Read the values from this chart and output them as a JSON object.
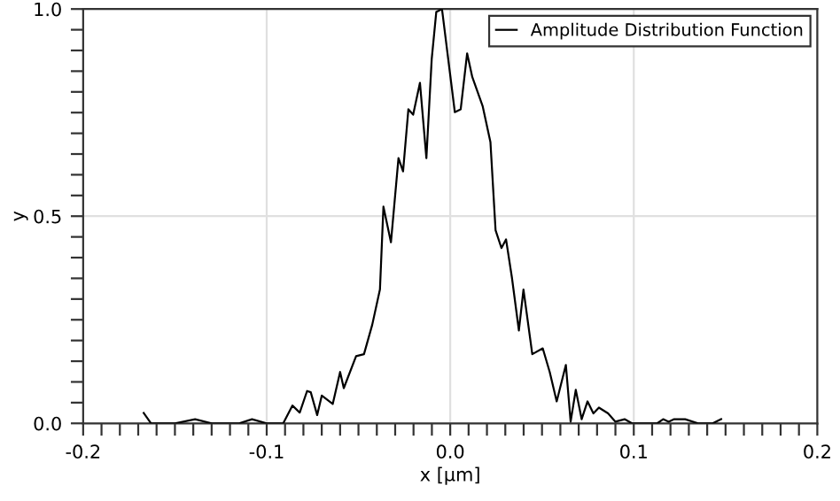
{
  "chart_data": {
    "type": "line",
    "xlabel": "x [µm]",
    "ylabel": "y",
    "x": [
      -0.167,
      -0.163,
      -0.15,
      -0.139,
      -0.13,
      -0.115,
      -0.108,
      -0.1,
      -0.091,
      -0.086,
      -0.082,
      -0.078,
      -0.076,
      -0.0725,
      -0.07,
      -0.064,
      -0.06,
      -0.058,
      -0.0513,
      -0.047,
      -0.0425,
      -0.0383,
      -0.0364,
      -0.0323,
      -0.0282,
      -0.0257,
      -0.0228,
      -0.0202,
      -0.0165,
      -0.013,
      -0.0101,
      -0.0076,
      -0.0045,
      0.0025,
      0.0057,
      0.0092,
      0.012,
      0.0177,
      0.0219,
      0.0247,
      0.0279,
      0.0304,
      0.0336,
      0.0374,
      0.0399,
      0.0447,
      0.0504,
      0.0542,
      0.058,
      0.063,
      0.0656,
      0.0684,
      0.0716,
      0.0748,
      0.078,
      0.081,
      0.086,
      0.09,
      0.095,
      0.099,
      0.1128,
      0.116,
      0.119,
      0.122,
      0.128,
      0.135,
      0.143,
      0.1476
    ],
    "series": [
      {
        "name": "Amplitude Distribution Function",
        "color": "#000000",
        "values": [
          0.025,
          0.0,
          0.0,
          0.01,
          0.0,
          0.0,
          0.01,
          0.0,
          0.0,
          0.043,
          0.026,
          0.078,
          0.075,
          0.02,
          0.067,
          0.047,
          0.124,
          0.085,
          0.162,
          0.167,
          0.238,
          0.323,
          0.523,
          0.437,
          0.64,
          0.608,
          0.758,
          0.745,
          0.822,
          0.64,
          0.879,
          0.993,
          1.0,
          0.751,
          0.758,
          0.893,
          0.836,
          0.765,
          0.679,
          0.466,
          0.423,
          0.444,
          0.352,
          0.224,
          0.323,
          0.167,
          0.181,
          0.124,
          0.053,
          0.141,
          0.004,
          0.081,
          0.01,
          0.053,
          0.024,
          0.038,
          0.024,
          0.004,
          0.01,
          0.0,
          0.0,
          0.01,
          0.004,
          0.01,
          0.01,
          0.0,
          0.0,
          0.01
        ]
      }
    ],
    "xlim": [
      -0.2,
      0.2
    ],
    "ylim": [
      0.0,
      1.0
    ],
    "xticks": [
      {
        "value": -0.2,
        "label": "-0.2"
      },
      {
        "value": -0.19,
        "label": null
      },
      {
        "value": -0.18,
        "label": null
      },
      {
        "value": -0.17,
        "label": null
      },
      {
        "value": -0.16,
        "label": null
      },
      {
        "value": -0.15,
        "label": null
      },
      {
        "value": -0.14,
        "label": null
      },
      {
        "value": -0.13,
        "label": null
      },
      {
        "value": -0.12,
        "label": null
      },
      {
        "value": -0.11,
        "label": null
      },
      {
        "value": -0.1,
        "label": "-0.1"
      },
      {
        "value": -0.09,
        "label": null
      },
      {
        "value": -0.08,
        "label": null
      },
      {
        "value": -0.07,
        "label": null
      },
      {
        "value": -0.06,
        "label": null
      },
      {
        "value": -0.05,
        "label": null
      },
      {
        "value": -0.04,
        "label": null
      },
      {
        "value": -0.03,
        "label": null
      },
      {
        "value": -0.02,
        "label": null
      },
      {
        "value": -0.01,
        "label": null
      },
      {
        "value": 0.0,
        "label": "0.0"
      },
      {
        "value": 0.01,
        "label": null
      },
      {
        "value": 0.02,
        "label": null
      },
      {
        "value": 0.03,
        "label": null
      },
      {
        "value": 0.04,
        "label": null
      },
      {
        "value": 0.05,
        "label": null
      },
      {
        "value": 0.06,
        "label": null
      },
      {
        "value": 0.07,
        "label": null
      },
      {
        "value": 0.08,
        "label": null
      },
      {
        "value": 0.09,
        "label": null
      },
      {
        "value": 0.1,
        "label": "0.1"
      },
      {
        "value": 0.11,
        "label": null
      },
      {
        "value": 0.12,
        "label": null
      },
      {
        "value": 0.13,
        "label": null
      },
      {
        "value": 0.14,
        "label": null
      },
      {
        "value": 0.15,
        "label": null
      },
      {
        "value": 0.16,
        "label": null
      },
      {
        "value": 0.17,
        "label": null
      },
      {
        "value": 0.18,
        "label": null
      },
      {
        "value": 0.19,
        "label": null
      },
      {
        "value": 0.2,
        "label": "0.2"
      }
    ],
    "yticks": [
      {
        "value": 0.0,
        "label": "0.0"
      },
      {
        "value": 0.05,
        "label": null
      },
      {
        "value": 0.1,
        "label": null
      },
      {
        "value": 0.15,
        "label": null
      },
      {
        "value": 0.2,
        "label": null
      },
      {
        "value": 0.25,
        "label": null
      },
      {
        "value": 0.3,
        "label": null
      },
      {
        "value": 0.35,
        "label": null
      },
      {
        "value": 0.4,
        "label": null
      },
      {
        "value": 0.45,
        "label": null
      },
      {
        "value": 0.5,
        "label": "0.5"
      },
      {
        "value": 0.55,
        "label": null
      },
      {
        "value": 0.6,
        "label": null
      },
      {
        "value": 0.65,
        "label": null
      },
      {
        "value": 0.7,
        "label": null
      },
      {
        "value": 0.75,
        "label": null
      },
      {
        "value": 0.8,
        "label": null
      },
      {
        "value": 0.85,
        "label": null
      },
      {
        "value": 0.9,
        "label": null
      },
      {
        "value": 0.95,
        "label": null
      },
      {
        "value": 1.0,
        "label": "1.0"
      }
    ],
    "grid": true,
    "legend": "top right",
    "marker": "none",
    "line_style": "solid"
  }
}
